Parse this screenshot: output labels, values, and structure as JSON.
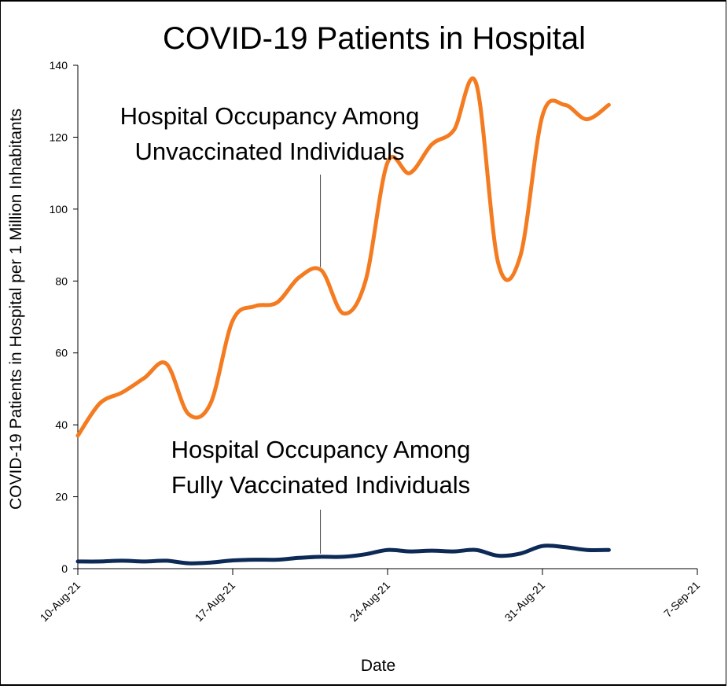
{
  "chart_data": {
    "type": "line",
    "title": "COVID-19 Patients in Hospital",
    "xlabel": "Date",
    "ylabel": "COVID-19 Patients in Hospital per 1 Million Inhabitants",
    "ylim": [
      0,
      140
    ],
    "yticks": [
      "0",
      "20",
      "40",
      "60",
      "80",
      "100",
      "120",
      "140"
    ],
    "xlim": [
      0,
      28
    ],
    "xticks": [
      {
        "label": "10-Aug-21",
        "day": 0
      },
      {
        "label": "17-Aug-21",
        "day": 7
      },
      {
        "label": "24-Aug-21",
        "day": 14
      },
      {
        "label": "31-Aug-21",
        "day": 21
      },
      {
        "label": "7-Sep-21",
        "day": 28
      }
    ],
    "x_days": [
      0,
      1,
      2,
      3,
      4,
      5,
      6,
      7,
      8,
      9,
      10,
      11,
      12,
      13,
      14,
      15,
      16,
      17,
      18,
      19,
      20,
      21,
      22,
      23,
      24
    ],
    "series": [
      {
        "name": "Unvaccinated",
        "color": "#f47b20",
        "values": [
          37,
          46,
          49,
          53,
          57,
          43,
          46,
          69,
          73,
          74,
          81,
          83,
          71,
          80,
          113,
          110,
          118,
          122,
          135,
          85,
          87,
          126,
          129,
          125,
          129
        ]
      },
      {
        "name": "Fully Vaccinated",
        "color": "#0d2a56",
        "values": [
          2,
          2,
          2.2,
          2,
          2.2,
          1.5,
          1.7,
          2.3,
          2.5,
          2.5,
          3,
          3.3,
          3.3,
          4,
          5.2,
          4.8,
          5,
          4.8,
          5.2,
          3.6,
          4.2,
          6.3,
          6,
          5.2,
          5.2
        ]
      }
    ],
    "annotations": [
      {
        "lines": [
          "Hospital Occupancy Among",
          "Unvaccinated Individuals"
        ],
        "series": "Unvaccinated",
        "day": 11
      },
      {
        "lines": [
          "Hospital Occupancy  Among",
          "Fully Vaccinated Individuals"
        ],
        "series": "Fully Vaccinated",
        "day": 11
      }
    ]
  }
}
